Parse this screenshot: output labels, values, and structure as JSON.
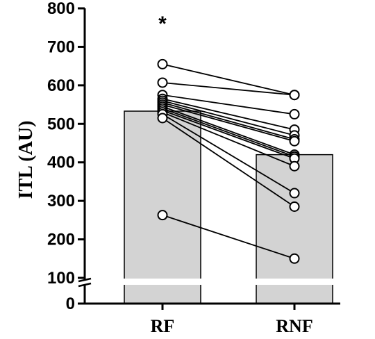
{
  "chart_data": {
    "type": "bar",
    "ylabel": "ITL (AU)",
    "xlabel": "",
    "categories": [
      "RF",
      "RNF"
    ],
    "bar_values": [
      533,
      420
    ],
    "bar_color": "#d3d3d3",
    "ylim": [
      0,
      800
    ],
    "axis_break": [
      0,
      100
    ],
    "yticks": [
      "0",
      "100",
      "200",
      "300",
      "400",
      "500",
      "600",
      "700",
      "800"
    ],
    "significance": {
      "category": "RF",
      "label": "*"
    },
    "paired_points": [
      {
        "RF": 655,
        "RNF": 575
      },
      {
        "RF": 607,
        "RNF": 575
      },
      {
        "RF": 575,
        "RNF": 525
      },
      {
        "RF": 565,
        "RNF": 485
      },
      {
        "RF": 560,
        "RNF": 470
      },
      {
        "RF": 555,
        "RNF": 460
      },
      {
        "RF": 550,
        "RNF": 455
      },
      {
        "RF": 545,
        "RNF": 420
      },
      {
        "RF": 540,
        "RNF": 415
      },
      {
        "RF": 535,
        "RNF": 410
      },
      {
        "RF": 530,
        "RNF": 390
      },
      {
        "RF": 525,
        "RNF": 320
      },
      {
        "RF": 515,
        "RNF": 285
      },
      {
        "RF": 263,
        "RNF": 150
      }
    ]
  }
}
